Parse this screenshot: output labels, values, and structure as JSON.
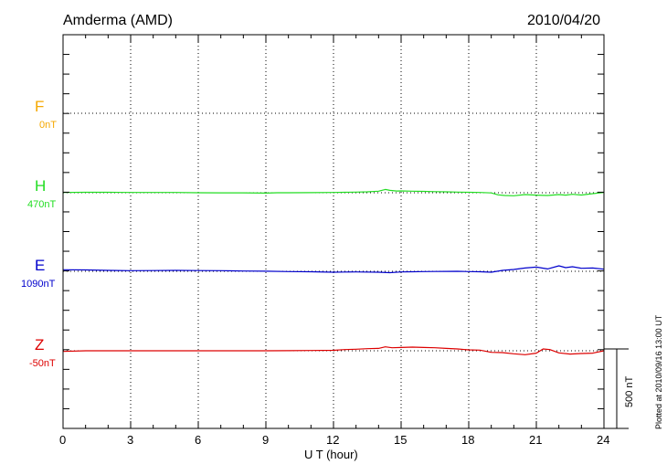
{
  "header": {
    "station": "Amderma (AMD)",
    "date": "2010/04/20"
  },
  "footer": {
    "credit": "Plotted at 2010/09/16 13:00 UT"
  },
  "scale_bar": {
    "label": "500 nT",
    "value_nT": 500
  },
  "chart_data": {
    "type": "line",
    "title": "Amderma (AMD)",
    "xlabel": "U T (hour)",
    "xlim": [
      0,
      24
    ],
    "xticks": [
      "0",
      "3",
      "6",
      "9",
      "12",
      "15",
      "18",
      "21",
      "24"
    ],
    "grid": true,
    "series": [
      {
        "name": "F",
        "baseline_label": "0nT",
        "color": "#f5a800",
        "x": [],
        "values": []
      },
      {
        "name": "H",
        "baseline_label": "470nT",
        "color": "#22dd22",
        "x": [
          0,
          1,
          2,
          3,
          4,
          5,
          6,
          7,
          8,
          9,
          9.5,
          10,
          11,
          12,
          12.5,
          13,
          13.5,
          14,
          14.3,
          14.5,
          14.8,
          15,
          15.5,
          16,
          16.5,
          17,
          17.5,
          18,
          18.5,
          19,
          19.3,
          19.6,
          20,
          20.5,
          21,
          21.5,
          22,
          22.3,
          22.6,
          23,
          23.5,
          24
        ],
        "values": [
          5,
          7,
          7,
          5,
          4,
          4,
          0,
          -2,
          -2,
          -6,
          0,
          0,
          2,
          5,
          8,
          10,
          15,
          25,
          55,
          40,
          28,
          30,
          25,
          22,
          18,
          15,
          10,
          8,
          5,
          -3,
          -35,
          -45,
          -50,
          -30,
          -40,
          -45,
          -30,
          -40,
          -25,
          -38,
          -15,
          5
        ]
      },
      {
        "name": "E",
        "baseline_label": "1090nT",
        "color": "#0000cc",
        "x": [
          0,
          1,
          2,
          3,
          4,
          5,
          6,
          7,
          8,
          9,
          10,
          11,
          12,
          12.5,
          13,
          14,
          14.5,
          15,
          15.5,
          16,
          16.5,
          17,
          17.5,
          18,
          18.5,
          19,
          19.5,
          20,
          20.5,
          21,
          21.5,
          22,
          22.3,
          22.6,
          23,
          23.5,
          24
        ],
        "values": [
          25,
          22,
          15,
          10,
          12,
          15,
          12,
          10,
          5,
          2,
          -5,
          -8,
          -15,
          -12,
          -10,
          -15,
          -22,
          -10,
          -8,
          -5,
          -3,
          -2,
          0,
          -5,
          -8,
          -15,
          15,
          30,
          55,
          70,
          40,
          90,
          60,
          75,
          50,
          55,
          35
        ]
      },
      {
        "name": "Z",
        "baseline_label": "-50nT",
        "color": "#dd0000",
        "x": [
          0,
          1,
          2,
          3,
          4,
          5,
          6,
          7,
          8,
          9,
          10,
          11,
          12,
          12.5,
          13,
          13.5,
          14,
          14.3,
          14.6,
          15,
          15.5,
          16,
          16.5,
          17,
          17.5,
          18,
          18.5,
          19,
          19.5,
          20,
          20.5,
          21,
          21.3,
          21.6,
          22,
          22.5,
          23,
          23.5,
          24
        ],
        "values": [
          -10,
          0,
          0,
          0,
          0,
          0,
          0,
          0,
          0,
          0,
          2,
          5,
          8,
          20,
          25,
          35,
          40,
          65,
          50,
          55,
          60,
          55,
          50,
          40,
          30,
          15,
          10,
          -25,
          -30,
          -50,
          -65,
          -40,
          30,
          20,
          -35,
          -55,
          -45,
          -40,
          0
        ]
      }
    ]
  }
}
